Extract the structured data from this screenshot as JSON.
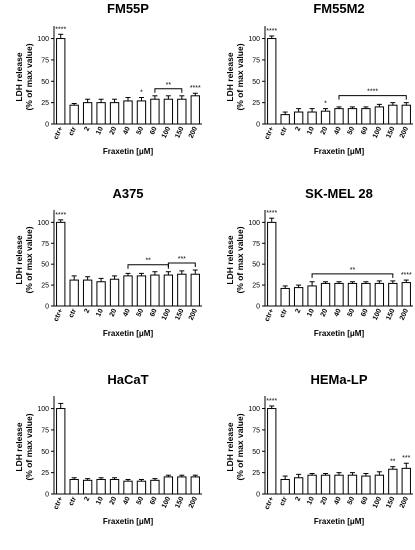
{
  "chart_data": [
    {
      "type": "bar",
      "title": "FM55P",
      "ylabel": [
        "LDH release",
        "(% of max value)"
      ],
      "xlabel": "Fraxetin [μM]",
      "categories": [
        "ctr+",
        "ctr",
        "2",
        "10",
        "20",
        "40",
        "50",
        "60",
        "100",
        "150",
        "200"
      ],
      "values": [
        100,
        22,
        25,
        25,
        25,
        27,
        27,
        29,
        29,
        29,
        33
      ],
      "errors": [
        5,
        2,
        4,
        4,
        4,
        4,
        4,
        4,
        4,
        4,
        3
      ],
      "yticks": [
        0,
        25,
        50,
        75,
        100
      ],
      "ylim": [
        0,
        110
      ],
      "sig_marks": [
        {
          "bar": 0,
          "label": "****"
        },
        {
          "bar": 6,
          "label": "*"
        },
        {
          "bar": 10,
          "label": "****"
        }
      ],
      "brackets": [
        {
          "from": 7,
          "to": 9,
          "label": "**"
        }
      ]
    },
    {
      "type": "bar",
      "title": "FM55M2",
      "ylabel": [
        "LDH release",
        "(% of max value)"
      ],
      "xlabel": "Fraxetin [μM]",
      "categories": [
        "ctr+",
        "ctr",
        "2",
        "10",
        "20",
        "40",
        "50",
        "60",
        "100",
        "150",
        "200"
      ],
      "values": [
        100,
        11,
        14,
        14,
        15,
        18,
        18,
        18,
        20,
        22,
        22
      ],
      "errors": [
        3,
        3,
        4,
        4,
        3,
        2,
        2,
        2,
        3,
        3,
        3
      ],
      "yticks": [
        0,
        25,
        50,
        75,
        100
      ],
      "ylim": [
        0,
        110
      ],
      "sig_marks": [
        {
          "bar": 0,
          "label": "****"
        },
        {
          "bar": 4,
          "label": "*"
        }
      ],
      "brackets": [
        {
          "from": 5,
          "to": 10,
          "label": "****"
        }
      ]
    },
    {
      "type": "bar",
      "title": "A375",
      "ylabel": [
        "LDH release",
        "(% of max value)"
      ],
      "xlabel": "Fraxetin [μM]",
      "categories": [
        "ctr+",
        "ctr",
        "2",
        "10",
        "20",
        "40",
        "50",
        "60",
        "100",
        "150",
        "200"
      ],
      "values": [
        100,
        31,
        31,
        29,
        32,
        36,
        36,
        37,
        37,
        38,
        38
      ],
      "errors": [
        3,
        5,
        4,
        4,
        4,
        3,
        3,
        4,
        4,
        4,
        5
      ],
      "yticks": [
        0,
        25,
        50,
        75,
        100
      ],
      "ylim": [
        0,
        110
      ],
      "sig_marks": [
        {
          "bar": 0,
          "label": "****"
        }
      ],
      "brackets": [
        {
          "from": 5,
          "to": 8,
          "label": "**"
        },
        {
          "from": 8,
          "to": 10,
          "label": "***"
        }
      ]
    },
    {
      "type": "bar",
      "title": "SK-MEL 28",
      "ylabel": [
        "LDH release",
        "(% of max value)"
      ],
      "xlabel": "Fraxetin [μM]",
      "categories": [
        "ctr+",
        "ctr",
        "2",
        "10",
        "20",
        "40",
        "50",
        "60",
        "100",
        "150",
        "200"
      ],
      "values": [
        100,
        21,
        22,
        24,
        27,
        27,
        27,
        27,
        27,
        27,
        28
      ],
      "errors": [
        5,
        3,
        3,
        5,
        2,
        2,
        2,
        2,
        3,
        3,
        3
      ],
      "yticks": [
        0,
        25,
        50,
        75,
        100
      ],
      "ylim": [
        0,
        110
      ],
      "sig_marks": [
        {
          "bar": 0,
          "label": "****"
        },
        {
          "bar": 10,
          "label": "****"
        }
      ],
      "brackets": [
        {
          "from": 3,
          "to": 9,
          "label": "**"
        }
      ]
    },
    {
      "type": "bar",
      "title": "HaCaT",
      "ylabel": [
        "LDH release",
        "(% of max value)"
      ],
      "xlabel": "Fraxetin [μM]",
      "categories": [
        "ctr+",
        "ctr",
        "2",
        "10",
        "20",
        "40",
        "50",
        "60",
        "100",
        "150",
        "200"
      ],
      "values": [
        100,
        17,
        16,
        17,
        17,
        15,
        15,
        16,
        20,
        20,
        20
      ],
      "errors": [
        6,
        2,
        2,
        2,
        2,
        2,
        2,
        2,
        2,
        2,
        2
      ],
      "yticks": [
        0,
        25,
        50,
        75,
        100
      ],
      "ylim": [
        0,
        110
      ],
      "sig_marks": [],
      "brackets": []
    },
    {
      "type": "bar",
      "title": "HEMa-LP",
      "ylabel": [
        "LDH release",
        "(% of max value)"
      ],
      "xlabel": "Fraxetin [μM]",
      "categories": [
        "ctr+",
        "ctr",
        "2",
        "10",
        "20",
        "40",
        "50",
        "60",
        "100",
        "150",
        "200"
      ],
      "values": [
        100,
        17,
        19,
        22,
        22,
        22,
        22,
        21,
        22,
        29,
        30
      ],
      "errors": [
        3,
        4,
        4,
        2,
        2,
        3,
        3,
        3,
        4,
        3,
        6
      ],
      "yticks": [
        0,
        25,
        50,
        75,
        100
      ],
      "ylim": [
        0,
        110
      ],
      "sig_marks": [
        {
          "bar": 0,
          "label": "****"
        },
        {
          "bar": 9,
          "label": "**"
        },
        {
          "bar": 10,
          "label": "***"
        }
      ],
      "brackets": []
    }
  ]
}
